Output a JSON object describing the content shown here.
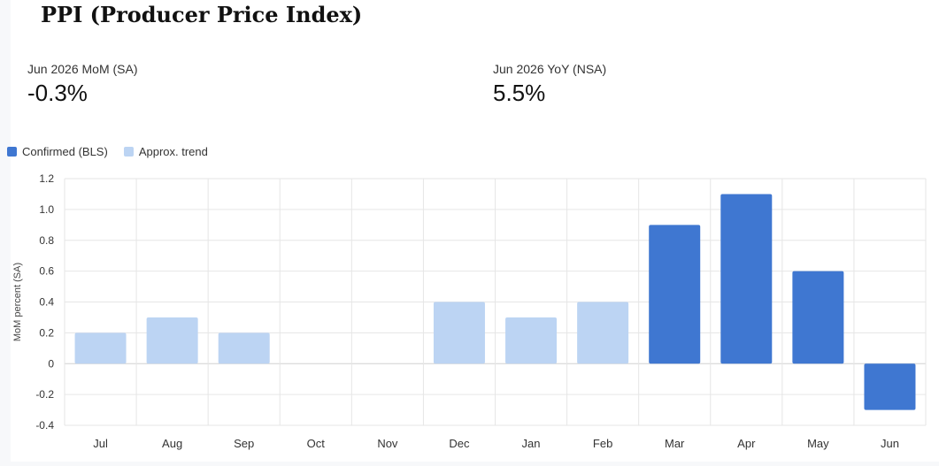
{
  "title": "PPI (Producer Price Index)",
  "metrics": [
    {
      "label": "Jun 2026 MoM (SA)",
      "value": "-0.3%"
    },
    {
      "label": "Jun 2026 YoY (NSA)",
      "value": "5.5%"
    }
  ],
  "legend": [
    {
      "label": "Confirmed (BLS)",
      "color": "#3f77d1"
    },
    {
      "label": "Approx. trend",
      "color": "#bcd4f3"
    }
  ],
  "chart_data": {
    "type": "bar",
    "ylabel": "MoM percent (SA)",
    "ylim": [
      -0.4,
      1.2
    ],
    "yticks": [
      "1.2",
      "1.0",
      "0.8",
      "0.6",
      "0.4",
      "0.2",
      "0",
      "-0.2",
      "-0.4"
    ],
    "grid": true,
    "legend_position": "top-left",
    "categories": [
      "Jul",
      "Aug",
      "Sep",
      "Oct",
      "Nov",
      "Dec",
      "Jan",
      "Feb",
      "Mar",
      "Apr",
      "May",
      "Jun"
    ],
    "series": [
      {
        "name": "Approx. trend",
        "color": "#bcd4f3",
        "values": [
          0.2,
          0.3,
          0.2,
          null,
          null,
          0.4,
          0.3,
          0.4,
          null,
          null,
          null,
          null
        ]
      },
      {
        "name": "Confirmed (BLS)",
        "color": "#3f77d1",
        "values": [
          null,
          null,
          null,
          null,
          null,
          null,
          null,
          null,
          0.9,
          1.1,
          0.6,
          -0.3
        ]
      }
    ]
  }
}
